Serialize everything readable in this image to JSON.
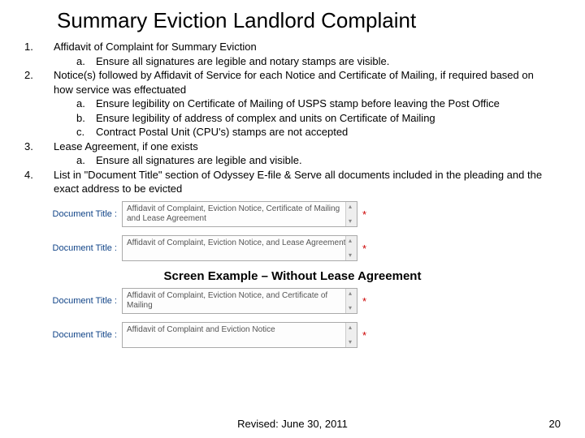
{
  "title": "Summary Eviction Landlord Complaint",
  "items": [
    {
      "num": "1.",
      "text": "Affidavit of Complaint for Summary Eviction",
      "subs": [
        {
          "num": "a.",
          "text": "Ensure all signatures are legible and notary stamps are visible."
        }
      ]
    },
    {
      "num": "2.",
      "text": "Notice(s) followed by Affidavit of Service for each Notice and Certificate of Mailing, if required based on how service was effectuated",
      "subs": [
        {
          "num": "a.",
          "text": "Ensure legibility on Certificate of Mailing of USPS stamp before leaving the Post Office"
        },
        {
          "num": "b.",
          "text": "Ensure legibility of address of complex and units on Certificate of Mailing"
        },
        {
          "num": "c.",
          "text": "Contract Postal Unit (CPU's) stamps are not accepted"
        }
      ]
    },
    {
      "num": "3.",
      "text": "Lease Agreement, if one exists",
      "subs": [
        {
          "num": "a.",
          "text": "Ensure all signatures are legible and visible."
        }
      ]
    },
    {
      "num": "4.",
      "text": "List in \"Document Title\" section of Odyssey E-file & Serve all documents included in the pleading and the exact address to be evicted",
      "subs": []
    }
  ],
  "fieldLabel": "Document Title :",
  "example1": [
    "Affidavit of Complaint, Eviction Notice, Certificate of Mailing and Lease Agreement",
    "Affidavit of Complaint, Eviction Notice, and Lease Agreement"
  ],
  "caption": "Screen Example – Without Lease Agreement",
  "example2": [
    "Affidavit of Complaint, Eviction Notice, and Certificate of Mailing",
    "Affidavit of Complaint and Eviction Notice"
  ],
  "revised": "Revised: June 30, 2011",
  "pageNum": "20"
}
